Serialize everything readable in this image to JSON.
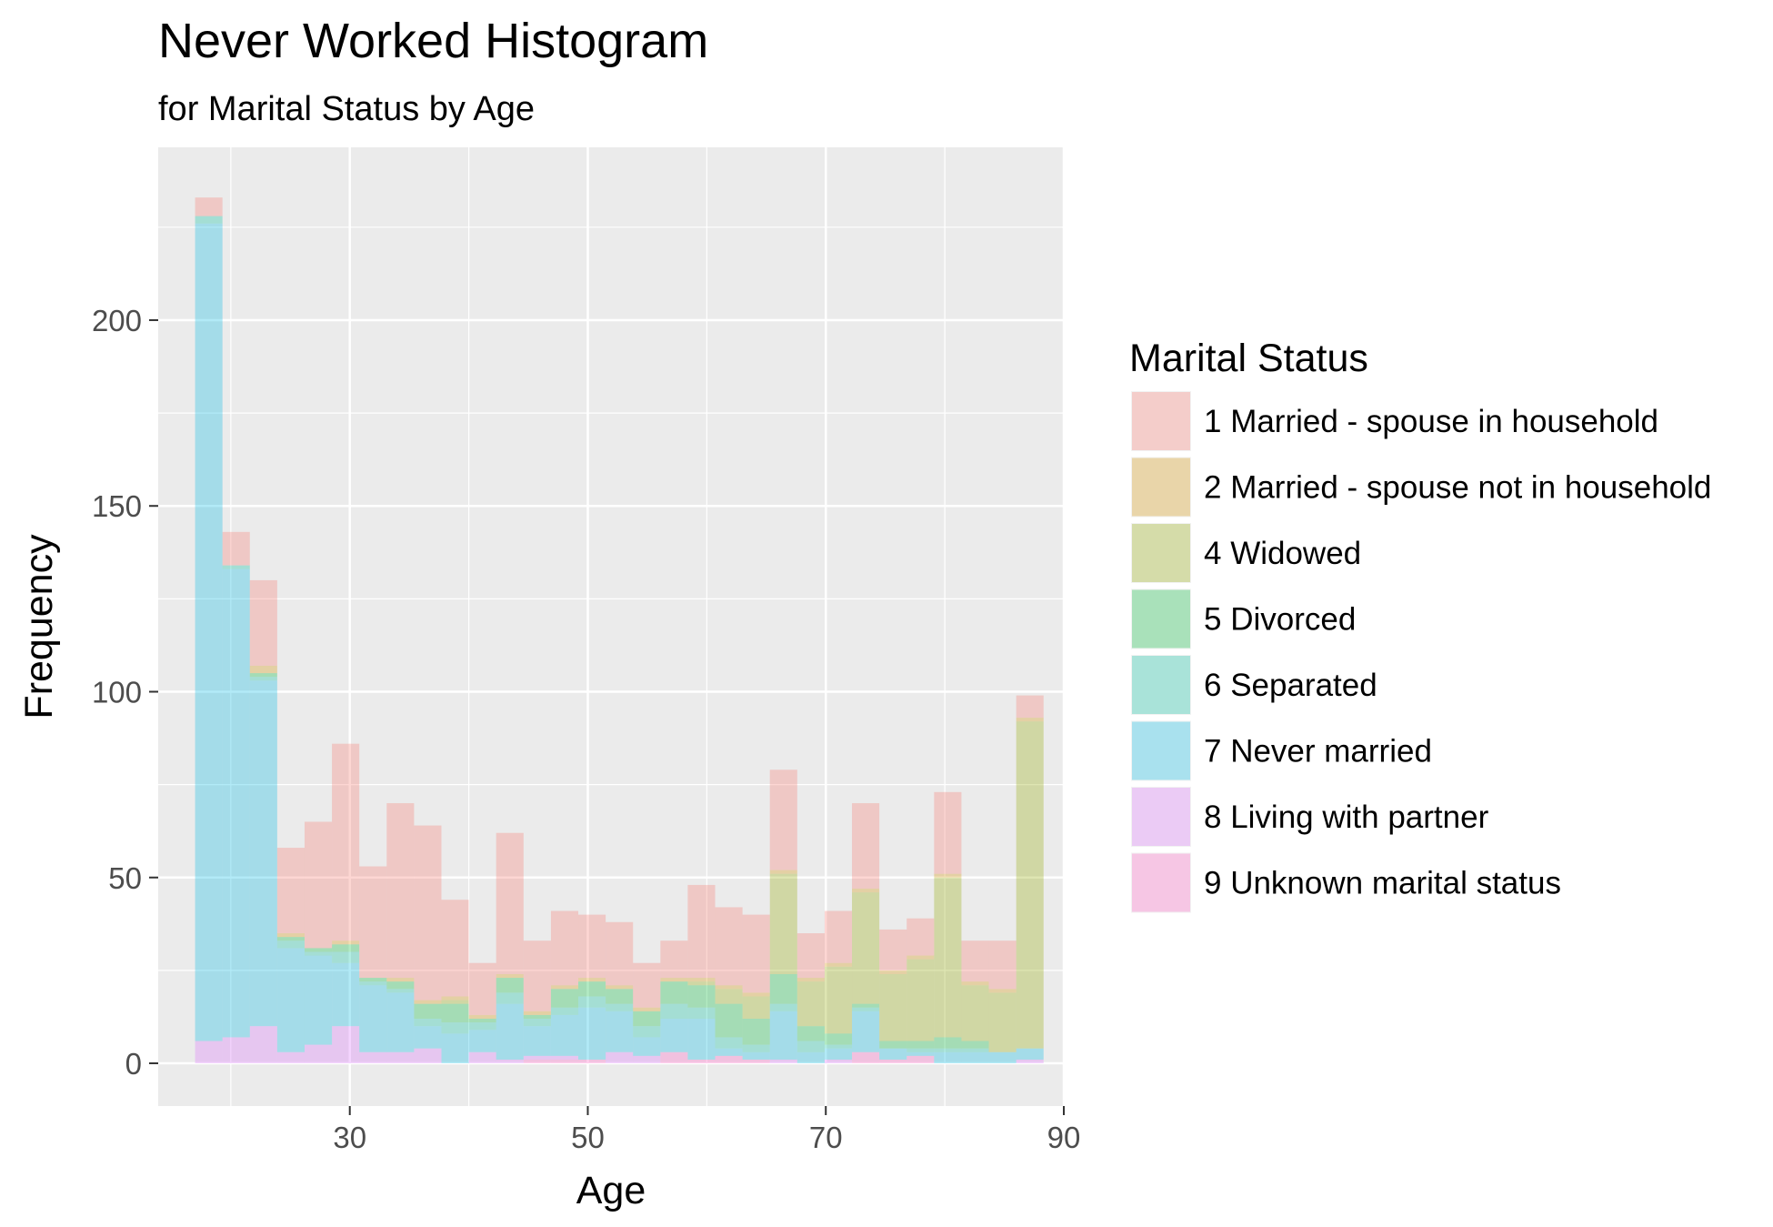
{
  "chart_data": {
    "type": "bar",
    "title": "Never Worked Histogram",
    "subtitle": "for Marital Status by Age",
    "xlabel": "Age",
    "ylabel": "Frequency",
    "xlim": [
      13.9,
      90
    ],
    "ylim": [
      -11.5,
      246.5
    ],
    "xticks": [
      30,
      50,
      70,
      90
    ],
    "yticks": [
      0,
      50,
      100,
      150,
      200
    ],
    "bin_start": 17,
    "bin_width": 2.3,
    "legend_title": "Marital Status",
    "legend_position": "right",
    "grid": true,
    "stacked": true,
    "series": [
      {
        "name": "9 Unknown marital status",
        "color": "#FF61C3",
        "values": [
          0,
          0,
          0,
          0,
          0,
          0,
          0,
          0,
          0,
          0,
          0,
          0,
          1,
          1,
          1,
          0,
          0,
          3,
          1,
          2,
          1,
          0,
          0,
          0,
          3,
          1,
          2,
          0,
          0,
          0,
          0
        ]
      },
      {
        "name": "8 Living with partner",
        "color": "#DB72FB",
        "values": [
          6,
          7,
          10,
          3,
          5,
          10,
          3,
          3,
          4,
          0,
          3,
          1,
          1,
          1,
          0,
          3,
          2,
          0,
          0,
          0,
          0,
          1,
          0,
          1,
          0,
          0,
          0,
          0,
          0,
          0,
          1
        ]
      },
      {
        "name": "7 Never married",
        "color": "#00B9E3",
        "values": [
          220,
          126,
          93,
          28,
          24,
          17,
          18,
          16,
          6,
          8,
          6,
          15,
          8,
          11,
          14,
          11,
          5,
          9,
          11,
          2,
          2,
          13,
          3,
          3,
          11,
          3,
          1,
          3,
          3,
          3,
          3
        ]
      },
      {
        "name": "6 Separated",
        "color": "#00C19F",
        "values": [
          2,
          1,
          1,
          2,
          1,
          3,
          1,
          1,
          2,
          3,
          2,
          3,
          2,
          2,
          3,
          2,
          3,
          4,
          3,
          3,
          2,
          2,
          3,
          1,
          1,
          0,
          1,
          1,
          1,
          0,
          0
        ]
      },
      {
        "name": "5 Divorced",
        "color": "#00BA38",
        "values": [
          0,
          0,
          1,
          1,
          1,
          2,
          1,
          2,
          4,
          5,
          1,
          4,
          1,
          5,
          4,
          4,
          4,
          6,
          6,
          9,
          7,
          8,
          4,
          3,
          1,
          2,
          2,
          3,
          2,
          0,
          0
        ]
      },
      {
        "name": "4 Widowed",
        "color": "#93AA00",
        "values": [
          0,
          0,
          0,
          0,
          0,
          0,
          0,
          0,
          0,
          1,
          0,
          0,
          0,
          0,
          0,
          0,
          0,
          0,
          1,
          4,
          6,
          27,
          12,
          18,
          30,
          18,
          22,
          43,
          15,
          16,
          88
        ]
      },
      {
        "name": "2 Married - spouse not in household",
        "color": "#D39200",
        "values": [
          0,
          0,
          2,
          1,
          0,
          1,
          0,
          1,
          1,
          1,
          1,
          1,
          1,
          1,
          1,
          1,
          1,
          1,
          1,
          1,
          1,
          1,
          1,
          1,
          1,
          1,
          1,
          1,
          1,
          1,
          1
        ]
      },
      {
        "name": "1 Married - spouse in household",
        "color": "#F8766D",
        "values": [
          5,
          9,
          23,
          23,
          34,
          53,
          30,
          47,
          47,
          26,
          14,
          38,
          19,
          20,
          17,
          17,
          12,
          10,
          25,
          21,
          21,
          27,
          12,
          14,
          23,
          11,
          10,
          22,
          11,
          13,
          6
        ]
      }
    ]
  }
}
